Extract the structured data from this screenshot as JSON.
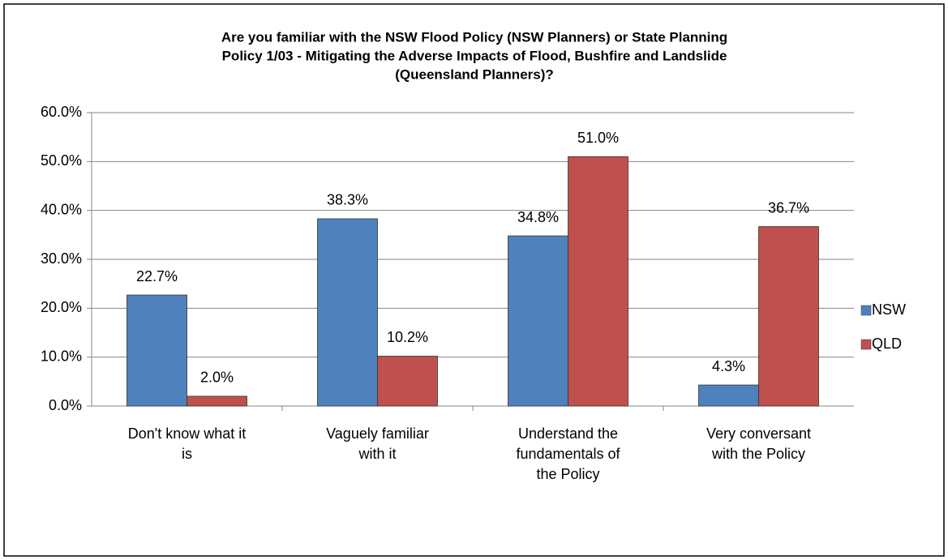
{
  "chart_data": {
    "type": "bar",
    "title": [
      "Are you familiar with the NSW Flood Policy (NSW Planners) or State Planning",
      "Policy 1/03 - Mitigating the Adverse Impacts of Flood, Bushfire and Landslide",
      "(Queensland Planners)?"
    ],
    "categories": [
      "Don't know what it is",
      "Vaguely familiar with it",
      "Understand the fundamentals of the Policy",
      "Very conversant with the Policy"
    ],
    "series": [
      {
        "name": "NSW",
        "color": "#4f81bd",
        "values": [
          22.7,
          38.3,
          34.8,
          4.3
        ],
        "value_labels": [
          "22.7%",
          "38.3%",
          "34.8%",
          "4.3%"
        ]
      },
      {
        "name": "QLD",
        "color": "#c0504d",
        "values": [
          2.0,
          10.2,
          51.0,
          36.7
        ],
        "value_labels": [
          "2.0%",
          "10.2%",
          "51.0%",
          "36.7%"
        ]
      }
    ],
    "ylim": [
      0,
      60
    ],
    "yticks": [
      {
        "value": 0,
        "label": "0.0%"
      },
      {
        "value": 10,
        "label": "10.0%"
      },
      {
        "value": 20,
        "label": "20.0%"
      },
      {
        "value": 30,
        "label": "30.0%"
      },
      {
        "value": 40,
        "label": "40.0%"
      },
      {
        "value": 50,
        "label": "50.0%"
      },
      {
        "value": 60,
        "label": "60.0%"
      }
    ],
    "grid": true,
    "legend": "right"
  }
}
